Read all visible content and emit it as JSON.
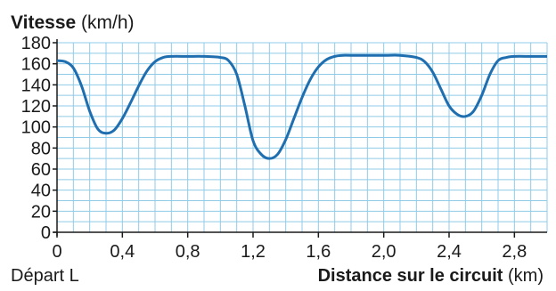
{
  "chart_data": {
    "type": "line",
    "ylabel_bold": "Vitesse",
    "ylabel_unit": "(km/h)",
    "start_label": "Départ L",
    "xlabel_bold": "Distance sur le circuit",
    "xlabel_unit": "(km)",
    "xlim": [
      0,
      3.0
    ],
    "ylim": [
      0,
      180
    ],
    "x_ticks": [
      "0",
      "0,4",
      "0,8",
      "1,2",
      "1,6",
      "2,0",
      "2,4",
      "2,8"
    ],
    "y_ticks": [
      "0",
      "20",
      "40",
      "60",
      "80",
      "100",
      "120",
      "140",
      "160",
      "180"
    ],
    "grid": true,
    "line_color": "#1f6fb0",
    "grid_color": "#8fcbe8",
    "series": [
      {
        "x": [
          0,
          0.05,
          0.1,
          0.15,
          0.2,
          0.25,
          0.3,
          0.35,
          0.4,
          0.45,
          0.5,
          0.55,
          0.6,
          0.65,
          0.7,
          0.8,
          0.9,
          1.0,
          1.05,
          1.1,
          1.15,
          1.2,
          1.25,
          1.3,
          1.35,
          1.4,
          1.45,
          1.5,
          1.55,
          1.6,
          1.65,
          1.7,
          1.75,
          1.8,
          2.0,
          2.1,
          2.2,
          2.25,
          2.3,
          2.35,
          2.4,
          2.45,
          2.5,
          2.55,
          2.6,
          2.65,
          2.7,
          2.75,
          2.8,
          2.9,
          3.0
        ],
        "y": [
          163,
          162,
          156,
          139,
          115,
          98,
          94,
          97,
          108,
          123,
          139,
          153,
          162,
          166,
          167,
          167,
          167,
          166,
          163,
          150,
          120,
          87,
          74,
          70,
          74,
          88,
          108,
          128,
          145,
          157,
          164,
          167,
          168,
          168,
          168,
          168,
          166,
          162,
          152,
          136,
          120,
          112,
          110,
          115,
          130,
          150,
          163,
          166,
          167,
          167,
          167
        ]
      }
    ]
  }
}
